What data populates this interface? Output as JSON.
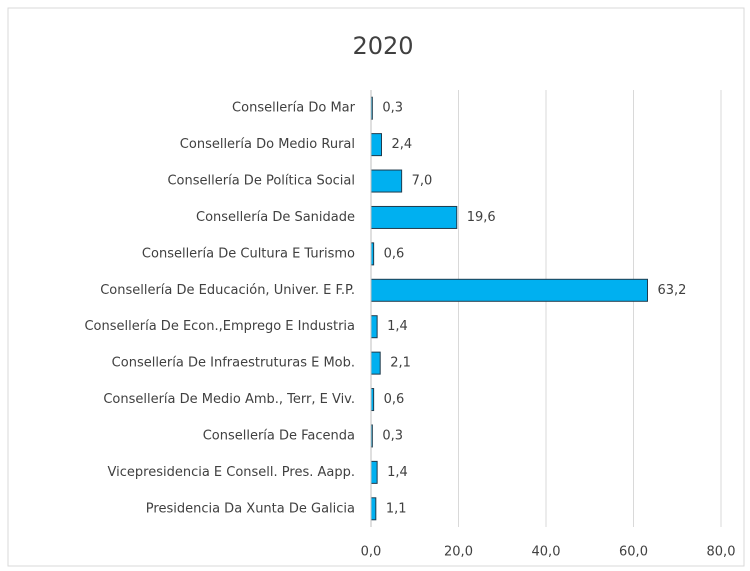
{
  "chart_data": {
    "type": "bar",
    "orientation": "horizontal",
    "title": "2020",
    "categories": [
      "Consellería Do Mar",
      "Consellería Do Medio Rural",
      "Consellería De Política Social",
      "Consellería De Sanidade",
      "Consellería De Cultura E Turismo",
      "Consellería De Educación, Univer. E F.P.",
      "Consellería De Econ.,Emprego E Industria",
      "Consellería De Infraestruturas E Mob.",
      "Consellería De Medio Amb., Terr, E Viv.",
      "Consellería De Facenda",
      "Vicepresidencia E Consell. Pres. Aapp.",
      "Presidencia Da Xunta De Galicia"
    ],
    "values": [
      0.3,
      2.4,
      7.0,
      19.6,
      0.6,
      63.2,
      1.4,
      2.1,
      0.6,
      0.3,
      1.4,
      1.1
    ],
    "value_labels": [
      "0,3",
      "2,4",
      "7,0",
      "19,6",
      "0,6",
      "63,2",
      "1,4",
      "2,1",
      "0,6",
      "0,3",
      "1,4",
      "1,1"
    ],
    "color": "#00b0f0",
    "xlim": [
      0,
      80
    ],
    "xticks": [
      {
        "value": 0,
        "label": "0,0"
      },
      {
        "value": 20,
        "label": "20,0"
      },
      {
        "value": 40,
        "label": "40,0"
      },
      {
        "value": 60,
        "label": "60,0"
      },
      {
        "value": 80,
        "label": "80,0"
      }
    ],
    "grid": true
  }
}
